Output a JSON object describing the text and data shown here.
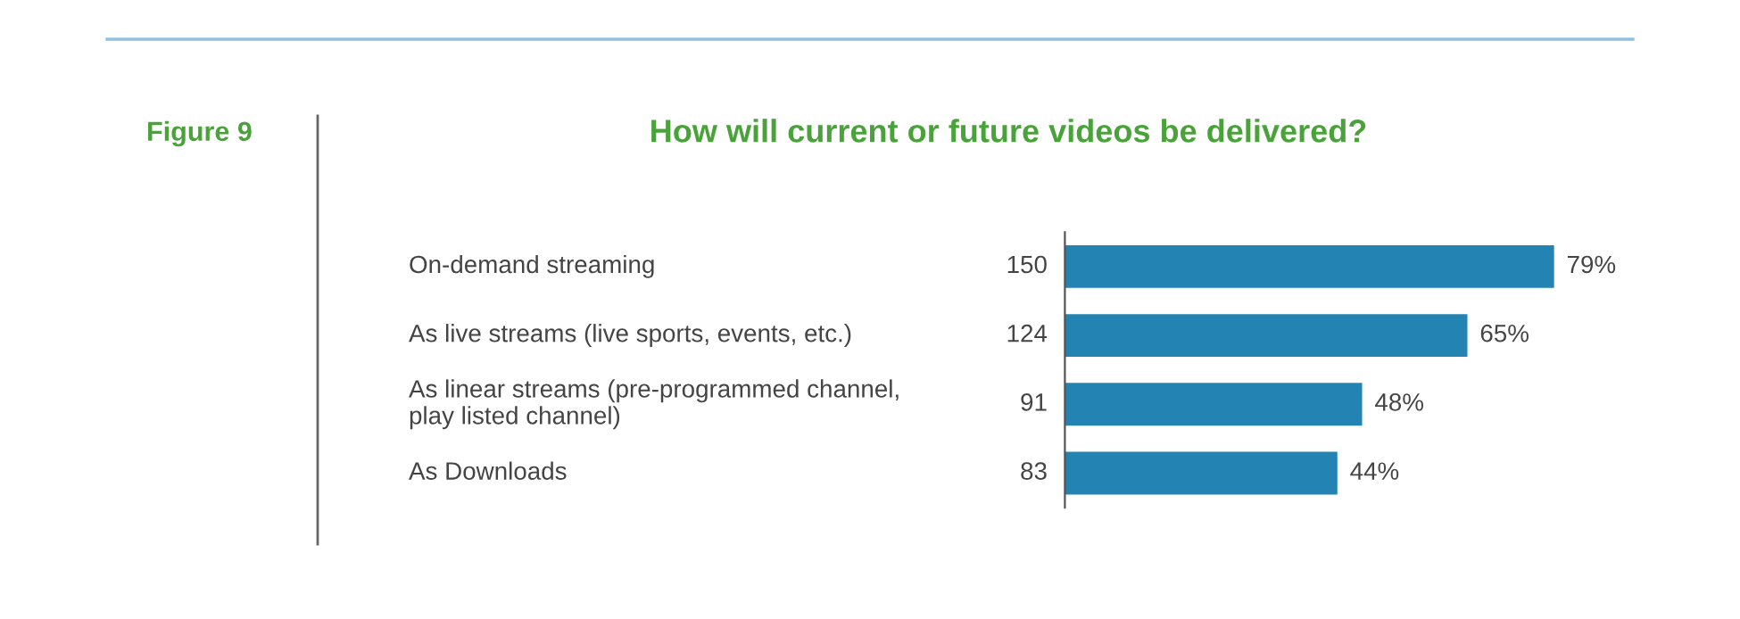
{
  "chart_data": {
    "type": "bar",
    "orientation": "horizontal",
    "title": "How will current or future videos be delivered?",
    "annotations": [
      "Figure 9",
      "150",
      "124",
      "91",
      "83"
    ],
    "categories": [
      "On-demand streaming",
      "As live streams (live sports, events, etc.)",
      "As linear streams (pre-programmed channel,\nplay listed channel)",
      "As Downloads"
    ],
    "values": [
      79,
      65,
      48,
      44
    ],
    "color": "#2384b3",
    "value_labels": [
      "79%",
      "65%",
      "48%",
      "44%"
    ],
    "tick_labels": false
  }
}
